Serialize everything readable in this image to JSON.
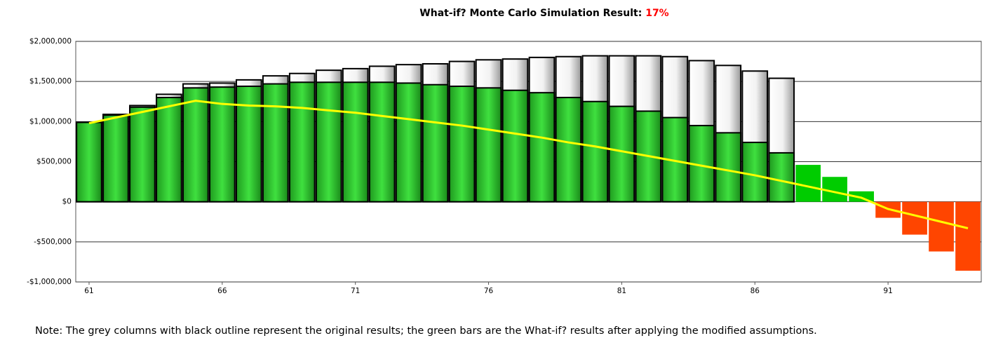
{
  "chart_data": {
    "type": "bar",
    "title": "What-if? Monte Carlo Simulation Result:",
    "result": "17%",
    "result_color": "#ff0000",
    "note": "Note: The grey columns with black outline represent the original results; the green bars are the What-if? results after applying the modified assumptions.",
    "x": [
      61,
      62,
      63,
      64,
      65,
      66,
      67,
      68,
      69,
      70,
      71,
      72,
      73,
      74,
      75,
      76,
      77,
      78,
      79,
      80,
      81,
      82,
      83,
      84,
      85,
      86,
      87,
      88,
      89,
      90,
      91,
      92,
      93,
      94
    ],
    "xlim": [
      60.5,
      94.5
    ],
    "xticks": [
      61,
      66,
      71,
      76,
      81,
      86,
      91
    ],
    "ylim": [
      -1000000,
      2000000
    ],
    "yticks": [
      {
        "value": -1000000,
        "label": "-$1,000,000"
      },
      {
        "value": -500000,
        "label": "-$500,000"
      },
      {
        "value": 0,
        "label": "$0"
      },
      {
        "value": 500000,
        "label": "$500,000"
      },
      {
        "value": 1000000,
        "label": "$1,000,000"
      },
      {
        "value": 1500000,
        "label": "$1,500,000"
      },
      {
        "value": 2000000,
        "label": "$2,000,000"
      }
    ],
    "grid": true,
    "series": [
      {
        "type": "bar",
        "color": "#ffffff",
        "values": [
          990000,
          1090000,
          1200000,
          1340000,
          1470000,
          1480000,
          1520000,
          1570000,
          1600000,
          1640000,
          1660000,
          1690000,
          1710000,
          1720000,
          1750000,
          1770000,
          1780000,
          1800000,
          1810000,
          1820000,
          1820000,
          1820000,
          1810000,
          1760000,
          1700000,
          1630000,
          1540000,
          null,
          null,
          null,
          null,
          null,
          null,
          null
        ]
      },
      {
        "type": "bar",
        "color": "#00cc00",
        "negative_color": "#ff4500",
        "values": [
          990000,
          1080000,
          1180000,
          1300000,
          1420000,
          1430000,
          1440000,
          1470000,
          1490000,
          1490000,
          1490000,
          1490000,
          1480000,
          1460000,
          1440000,
          1420000,
          1390000,
          1360000,
          1300000,
          1250000,
          1190000,
          1130000,
          1050000,
          950000,
          860000,
          740000,
          610000,
          460000,
          310000,
          130000,
          -200000,
          -410000,
          -620000,
          -860000
        ]
      },
      {
        "type": "line",
        "color": "#ffff00",
        "values": [
          980000,
          1050000,
          1120000,
          1190000,
          1260000,
          1220000,
          1200000,
          1190000,
          1170000,
          1140000,
          1110000,
          1070000,
          1030000,
          990000,
          950000,
          900000,
          850000,
          800000,
          740000,
          690000,
          630000,
          570000,
          510000,
          450000,
          390000,
          330000,
          260000,
          190000,
          120000,
          50000,
          -90000,
          -170000,
          -250000,
          -330000
        ]
      }
    ]
  }
}
